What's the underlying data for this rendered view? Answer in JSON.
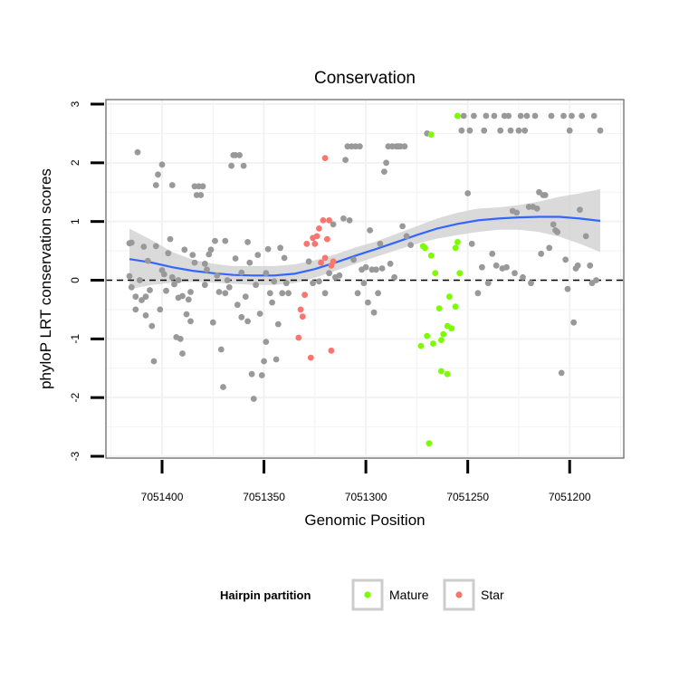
{
  "chart_data": {
    "type": "scatter",
    "title": "Conservation",
    "xlabel": "Genomic Position",
    "ylabel": "phyloP LRT conservation scores",
    "x_reversed": true,
    "xlim": [
      7051428,
      7051178
    ],
    "ylim": [
      -3,
      3
    ],
    "xticks": [
      7051400,
      7051350,
      7051300,
      7051250,
      7051200
    ],
    "xtick_labels": [
      "7051400",
      "7051350",
      "7051300",
      "7051250",
      "7051200"
    ],
    "yticks": [
      -3,
      -2,
      -1,
      0,
      1,
      2,
      3
    ],
    "ytick_labels": [
      "-3",
      "-2",
      "-1",
      "0",
      "1",
      "2",
      "3"
    ],
    "grid": true,
    "reference_line": {
      "y": 0,
      "style": "dashed"
    },
    "legend": {
      "title": "Hairpin partition",
      "placement": "bottom",
      "entries": [
        {
          "label": "Mature",
          "color": "#7cfc00"
        },
        {
          "label": "Star",
          "color": "#f8766d"
        }
      ]
    },
    "colors": {
      "other": "#999999",
      "mature": "#7cfc00",
      "star": "#f8766d",
      "smooth": "#3366ff",
      "band": "#d3d3d3"
    },
    "smooth": {
      "x": [
        7051416,
        7051405,
        7051395,
        7051385,
        7051375,
        7051365,
        7051355,
        7051345,
        7051335,
        7051325,
        7051315,
        7051305,
        7051295,
        7051285,
        7051275,
        7051265,
        7051255,
        7051245,
        7051235,
        7051225,
        7051215,
        7051205,
        7051195,
        7051185
      ],
      "y": [
        0.36,
        0.3,
        0.22,
        0.16,
        0.12,
        0.09,
        0.08,
        0.08,
        0.11,
        0.19,
        0.3,
        0.42,
        0.53,
        0.65,
        0.77,
        0.88,
        0.96,
        1.02,
        1.05,
        1.07,
        1.08,
        1.08,
        1.05,
        1.01
      ],
      "lower": [
        -0.15,
        -0.08,
        -0.04,
        -0.03,
        -0.04,
        -0.06,
        -0.08,
        -0.08,
        -0.05,
        0.04,
        0.16,
        0.28,
        0.4,
        0.51,
        0.62,
        0.71,
        0.77,
        0.82,
        0.86,
        0.86,
        0.82,
        0.74,
        0.62,
        0.48
      ],
      "upper": [
        0.88,
        0.68,
        0.48,
        0.35,
        0.28,
        0.24,
        0.24,
        0.24,
        0.27,
        0.34,
        0.44,
        0.56,
        0.66,
        0.79,
        0.92,
        1.05,
        1.15,
        1.22,
        1.24,
        1.28,
        1.34,
        1.42,
        1.48,
        1.55
      ]
    },
    "series": [
      {
        "name": "Other",
        "points": [
          [
            7051416,
            0.07
          ],
          [
            7051416,
            0.63
          ],
          [
            7051415,
            0.64
          ],
          [
            7051415,
            -0.12
          ],
          [
            7051413,
            -0.5
          ],
          [
            7051413,
            -0.28
          ],
          [
            7051412,
            2.18
          ],
          [
            7051411,
            0.0
          ],
          [
            7051410,
            -0.34
          ],
          [
            7051409,
            0.57
          ],
          [
            7051408,
            -0.28
          ],
          [
            7051408,
            -0.6
          ],
          [
            7051407,
            0.33
          ],
          [
            7051406,
            -0.17
          ],
          [
            7051405,
            -0.78
          ],
          [
            7051404,
            -1.38
          ],
          [
            7051403,
            0.58
          ],
          [
            7051403,
            1.62
          ],
          [
            7051402,
            1.8
          ],
          [
            7051401,
            -0.5
          ],
          [
            7051400,
            1.97
          ],
          [
            7051400,
            0.17
          ],
          [
            7051399,
            0.1
          ],
          [
            7051398,
            -0.18
          ],
          [
            7051397,
            0.46
          ],
          [
            7051396,
            0.7
          ],
          [
            7051395,
            1.62
          ],
          [
            7051395,
            0.05
          ],
          [
            7051394,
            -0.07
          ],
          [
            7051393,
            -0.97
          ],
          [
            7051392,
            0.0
          ],
          [
            7051392,
            -0.3
          ],
          [
            7051391,
            -1.0
          ],
          [
            7051390,
            -1.25
          ],
          [
            7051390,
            -0.27
          ],
          [
            7051389,
            0.52
          ],
          [
            7051388,
            -0.58
          ],
          [
            7051387,
            -0.33
          ],
          [
            7051386,
            -0.2
          ],
          [
            7051386,
            -0.7
          ],
          [
            7051385,
            0.43
          ],
          [
            7051384,
            0.3
          ],
          [
            7051384,
            1.6
          ],
          [
            7051383,
            1.45
          ],
          [
            7051382,
            1.6
          ],
          [
            7051381,
            1.45
          ],
          [
            7051380,
            1.6
          ],
          [
            7051379,
            -0.08
          ],
          [
            7051379,
            0.28
          ],
          [
            7051378,
            0.18
          ],
          [
            7051377,
            0.44
          ],
          [
            7051376,
            0.52
          ],
          [
            7051375,
            -0.72
          ],
          [
            7051374,
            0.67
          ],
          [
            7051373,
            0.08
          ],
          [
            7051372,
            -0.2
          ],
          [
            7051371,
            -1.18
          ],
          [
            7051370,
            -1.82
          ],
          [
            7051369,
            -0.22
          ],
          [
            7051369,
            0.67
          ],
          [
            7051368,
            0.0
          ],
          [
            7051367,
            -0.12
          ],
          [
            7051366,
            1.95
          ],
          [
            7051365,
            2.13
          ],
          [
            7051364,
            0.37
          ],
          [
            7051364,
            2.13
          ],
          [
            7051363,
            -0.42
          ],
          [
            7051362,
            2.13
          ],
          [
            7051361,
            0.13
          ],
          [
            7051361,
            -0.63
          ],
          [
            7051360,
            1.95
          ],
          [
            7051359,
            -0.28
          ],
          [
            7051358,
            -0.7
          ],
          [
            7051358,
            0.65
          ],
          [
            7051357,
            0.3
          ],
          [
            7051356,
            -1.6
          ],
          [
            7051355,
            -2.02
          ],
          [
            7051354,
            -0.08
          ],
          [
            7051353,
            0.43
          ],
          [
            7051352,
            -0.57
          ],
          [
            7051351,
            -1.62
          ],
          [
            7051350,
            -1.38
          ],
          [
            7051349,
            0.12
          ],
          [
            7051349,
            -1.05
          ],
          [
            7051348,
            0.53
          ],
          [
            7051347,
            -0.22
          ],
          [
            7051346,
            -0.38
          ],
          [
            7051345,
            -0.02
          ],
          [
            7051344,
            -1.35
          ],
          [
            7051343,
            -0.75
          ],
          [
            7051342,
            0.55
          ],
          [
            7051341,
            -0.22
          ],
          [
            7051340,
            0.38
          ],
          [
            7051339,
            -0.05
          ],
          [
            7051338,
            -0.22
          ],
          [
            7051328,
            0.32
          ],
          [
            7051326,
            -0.05
          ],
          [
            7051323,
            -0.02
          ],
          [
            7051320,
            -0.22
          ],
          [
            7051318,
            0.12
          ],
          [
            7051316,
            0.95
          ],
          [
            7051315,
            0.05
          ],
          [
            7051313,
            0.08
          ],
          [
            7051311,
            1.05
          ],
          [
            7051310,
            2.05
          ],
          [
            7051309,
            2.28
          ],
          [
            7051308,
            1.02
          ],
          [
            7051307,
            2.28
          ],
          [
            7051306,
            0.35
          ],
          [
            7051305,
            2.28
          ],
          [
            7051304,
            -0.22
          ],
          [
            7051303,
            2.28
          ],
          [
            7051302,
            0.18
          ],
          [
            7051301,
            -0.05
          ],
          [
            7051300,
            0.22
          ],
          [
            7051299,
            -0.38
          ],
          [
            7051298,
            0.85
          ],
          [
            7051297,
            0.18
          ],
          [
            7051296,
            -0.55
          ],
          [
            7051295,
            0.18
          ],
          [
            7051294,
            -0.22
          ],
          [
            7051293,
            0.62
          ],
          [
            7051292,
            0.2
          ],
          [
            7051291,
            1.85
          ],
          [
            7051290,
            2.0
          ],
          [
            7051289,
            2.28
          ],
          [
            7051288,
            0.28
          ],
          [
            7051287,
            2.28
          ],
          [
            7051286,
            0.05
          ],
          [
            7051285,
            2.28
          ],
          [
            7051284,
            2.28
          ],
          [
            7051283,
            2.28
          ],
          [
            7051282,
            0.92
          ],
          [
            7051281,
            2.28
          ],
          [
            7051280,
            0.75
          ],
          [
            7051278,
            0.6
          ],
          [
            7051270,
            2.5
          ],
          [
            7051255,
            2.8
          ],
          [
            7051253,
            2.55
          ],
          [
            7051252,
            2.8
          ],
          [
            7051250,
            1.48
          ],
          [
            7051249,
            2.55
          ],
          [
            7051248,
            0.62
          ],
          [
            7051247,
            2.8
          ],
          [
            7051245,
            -0.22
          ],
          [
            7051243,
            0.22
          ],
          [
            7051242,
            2.55
          ],
          [
            7051241,
            2.8
          ],
          [
            7051240,
            -0.05
          ],
          [
            7051238,
            0.45
          ],
          [
            7051237,
            2.8
          ],
          [
            7051236,
            0.25
          ],
          [
            7051234,
            2.55
          ],
          [
            7051233,
            0.2
          ],
          [
            7051232,
            2.8
          ],
          [
            7051231,
            0.22
          ],
          [
            7051230,
            2.8
          ],
          [
            7051229,
            2.55
          ],
          [
            7051228,
            1.18
          ],
          [
            7051227,
            0.12
          ],
          [
            7051226,
            1.15
          ],
          [
            7051225,
            2.55
          ],
          [
            7051224,
            2.8
          ],
          [
            7051223,
            0.05
          ],
          [
            7051222,
            2.55
          ],
          [
            7051221,
            2.8
          ],
          [
            7051220,
            1.25
          ],
          [
            7051219,
            -0.05
          ],
          [
            7051218,
            1.25
          ],
          [
            7051217,
            2.8
          ],
          [
            7051216,
            1.22
          ],
          [
            7051215,
            1.5
          ],
          [
            7051214,
            0.45
          ],
          [
            7051213,
            1.45
          ],
          [
            7051212,
            1.45
          ],
          [
            7051210,
            0.55
          ],
          [
            7051209,
            2.8
          ],
          [
            7051208,
            0.95
          ],
          [
            7051207,
            0.85
          ],
          [
            7051206,
            0.82
          ],
          [
            7051204,
            -1.58
          ],
          [
            7051203,
            2.8
          ],
          [
            7051202,
            0.35
          ],
          [
            7051201,
            -0.15
          ],
          [
            7051200,
            2.55
          ],
          [
            7051199,
            2.8
          ],
          [
            7051198,
            -0.72
          ],
          [
            7051197,
            0.2
          ],
          [
            7051196,
            0.25
          ],
          [
            7051195,
            1.2
          ],
          [
            7051194,
            2.8
          ],
          [
            7051192,
            0.75
          ],
          [
            7051190,
            0.25
          ],
          [
            7051189,
            -0.05
          ],
          [
            7051188,
            2.8
          ],
          [
            7051187,
            0.0
          ],
          [
            7051185,
            2.55
          ]
        ]
      },
      {
        "name": "Mature",
        "points": [
          [
            7051255,
            2.8
          ],
          [
            7051268,
            2.48
          ],
          [
            7051272,
            0.58
          ],
          [
            7051271,
            0.55
          ],
          [
            7051268,
            0.42
          ],
          [
            7051266,
            0.12
          ],
          [
            7051273,
            -1.12
          ],
          [
            7051270,
            -0.95
          ],
          [
            7051267,
            -1.08
          ],
          [
            7051264,
            -0.48
          ],
          [
            7051263,
            -1.02
          ],
          [
            7051262,
            -0.92
          ],
          [
            7051260,
            -0.78
          ],
          [
            7051259,
            -0.28
          ],
          [
            7051258,
            -0.82
          ],
          [
            7051256,
            -0.45
          ],
          [
            7051263,
            -1.55
          ],
          [
            7051260,
            -1.6
          ],
          [
            7051269,
            -2.78
          ],
          [
            7051256,
            0.55
          ],
          [
            7051255,
            0.65
          ],
          [
            7051254,
            0.12
          ]
        ]
      },
      {
        "name": "Star",
        "points": [
          [
            7051320,
            2.08
          ],
          [
            7051321,
            1.02
          ],
          [
            7051318,
            1.02
          ],
          [
            7051323,
            0.88
          ],
          [
            7051324,
            0.75
          ],
          [
            7051325,
            0.62
          ],
          [
            7051326,
            0.72
          ],
          [
            7051322,
            0.3
          ],
          [
            7051320,
            0.38
          ],
          [
            7051319,
            0.7
          ],
          [
            7051317,
            0.25
          ],
          [
            7051316,
            0.32
          ],
          [
            7051329,
            0.62
          ],
          [
            7051330,
            -0.25
          ],
          [
            7051332,
            -0.5
          ],
          [
            7051331,
            -0.62
          ],
          [
            7051333,
            -0.98
          ],
          [
            7051327,
            -1.32
          ],
          [
            7051317,
            -1.2
          ]
        ]
      }
    ]
  }
}
